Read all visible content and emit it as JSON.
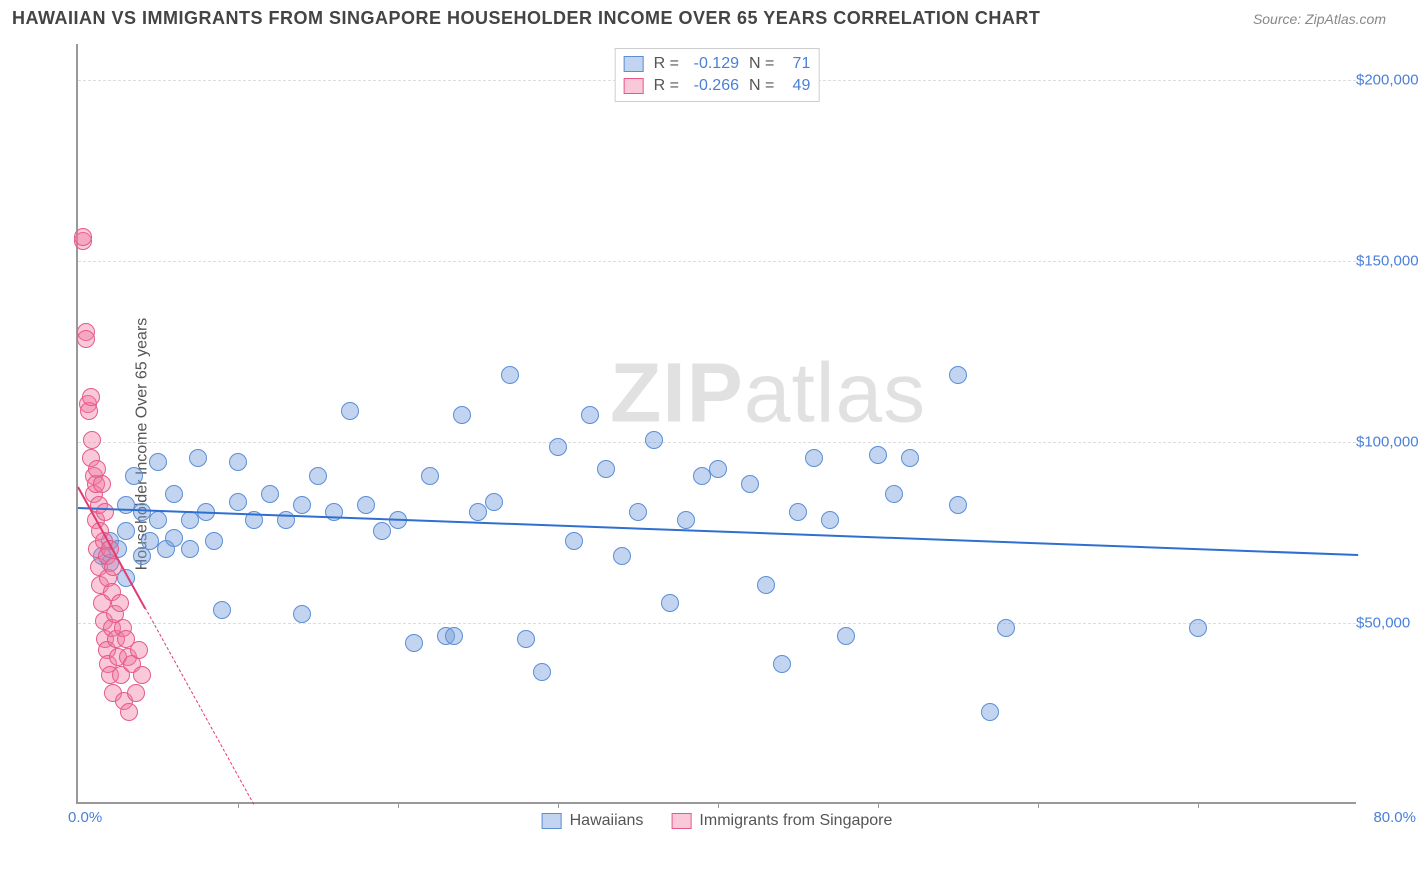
{
  "header": {
    "title": "HAWAIIAN VS IMMIGRANTS FROM SINGAPORE HOUSEHOLDER INCOME OVER 65 YEARS CORRELATION CHART",
    "source": "Source: ZipAtlas.com"
  },
  "chart": {
    "type": "scatter",
    "ylabel": "Householder Income Over 65 years",
    "watermark_1": "ZIP",
    "watermark_2": "atlas",
    "background_color": "#ffffff",
    "grid_color": "#dddddd",
    "axis_color": "#999999",
    "x": {
      "min": 0,
      "max": 80,
      "unit": "%",
      "start_label": "0.0%",
      "end_label": "80.0%",
      "tick_positions": [
        10,
        20,
        30,
        40,
        50,
        60,
        70
      ]
    },
    "y": {
      "min": 0,
      "max": 210000,
      "unit": "$",
      "ticks": [
        50000,
        100000,
        150000,
        200000
      ],
      "tick_labels": [
        "$50,000",
        "$100,000",
        "$150,000",
        "$200,000"
      ]
    },
    "series": [
      {
        "name": "Hawaiians",
        "R": "-0.129",
        "N": "71",
        "marker_radius": 9,
        "fill": "rgba(120,160,220,0.45)",
        "stroke": "#5b8ed6",
        "trend_color": "#2f6fd0",
        "trend": {
          "x1": 0,
          "y1": 82000,
          "x2": 80,
          "y2": 69000,
          "solid_until_x": 80
        },
        "points": [
          [
            1.5,
            68000
          ],
          [
            2,
            66000
          ],
          [
            2,
            72000
          ],
          [
            2.5,
            70000
          ],
          [
            3,
            62000
          ],
          [
            3,
            75000
          ],
          [
            3.5,
            90000
          ],
          [
            4,
            68000
          ],
          [
            4,
            80000
          ],
          [
            4.5,
            72000
          ],
          [
            5,
            78000
          ],
          [
            5,
            94000
          ],
          [
            5.5,
            70000
          ],
          [
            6,
            85000
          ],
          [
            6,
            73000
          ],
          [
            7,
            70000
          ],
          [
            7,
            78000
          ],
          [
            7.5,
            95000
          ],
          [
            8,
            80000
          ],
          [
            8.5,
            72000
          ],
          [
            9,
            53000
          ],
          [
            10,
            83000
          ],
          [
            10,
            94000
          ],
          [
            11,
            78000
          ],
          [
            12,
            85000
          ],
          [
            13,
            78000
          ],
          [
            14,
            82000
          ],
          [
            14,
            52000
          ],
          [
            15,
            90000
          ],
          [
            16,
            80000
          ],
          [
            17,
            108000
          ],
          [
            18,
            82000
          ],
          [
            19,
            75000
          ],
          [
            20,
            78000
          ],
          [
            21,
            44000
          ],
          [
            22,
            90000
          ],
          [
            23,
            46000
          ],
          [
            23.5,
            46000
          ],
          [
            24,
            107000
          ],
          [
            25,
            80000
          ],
          [
            26,
            83000
          ],
          [
            27,
            118000
          ],
          [
            28,
            45000
          ],
          [
            29,
            36000
          ],
          [
            30,
            98000
          ],
          [
            31,
            72000
          ],
          [
            32,
            107000
          ],
          [
            33,
            92000
          ],
          [
            34,
            68000
          ],
          [
            35,
            80000
          ],
          [
            36,
            100000
          ],
          [
            37,
            55000
          ],
          [
            38,
            78000
          ],
          [
            39,
            90000
          ],
          [
            40,
            92000
          ],
          [
            42,
            88000
          ],
          [
            43,
            60000
          ],
          [
            44,
            38000
          ],
          [
            45,
            80000
          ],
          [
            46,
            95000
          ],
          [
            47,
            78000
          ],
          [
            48,
            46000
          ],
          [
            50,
            96000
          ],
          [
            51,
            85000
          ],
          [
            52,
            95000
          ],
          [
            55,
            118000
          ],
          [
            55,
            82000
          ],
          [
            57,
            25000
          ],
          [
            58,
            48000
          ],
          [
            70,
            48000
          ],
          [
            3,
            82000
          ]
        ]
      },
      {
        "name": "Immigrants from Singapore",
        "R": "-0.266",
        "N": "49",
        "marker_radius": 9,
        "fill": "rgba(240,120,160,0.40)",
        "stroke": "#e65a8a",
        "trend_color": "#e23b72",
        "trend": {
          "x1": 0,
          "y1": 88000,
          "x2": 11,
          "y2": 0,
          "solid_until_x": 4.2
        },
        "points": [
          [
            0.3,
            155000
          ],
          [
            0.3,
            156000
          ],
          [
            0.5,
            130000
          ],
          [
            0.5,
            128000
          ],
          [
            0.6,
            110000
          ],
          [
            0.7,
            108000
          ],
          [
            0.8,
            112000
          ],
          [
            0.8,
            95000
          ],
          [
            0.9,
            100000
          ],
          [
            1.0,
            90000
          ],
          [
            1.0,
            85000
          ],
          [
            1.1,
            88000
          ],
          [
            1.1,
            78000
          ],
          [
            1.2,
            92000
          ],
          [
            1.2,
            70000
          ],
          [
            1.3,
            82000
          ],
          [
            1.3,
            65000
          ],
          [
            1.4,
            75000
          ],
          [
            1.4,
            60000
          ],
          [
            1.5,
            88000
          ],
          [
            1.5,
            55000
          ],
          [
            1.6,
            72000
          ],
          [
            1.6,
            50000
          ],
          [
            1.7,
            80000
          ],
          [
            1.7,
            45000
          ],
          [
            1.8,
            68000
          ],
          [
            1.8,
            42000
          ],
          [
            1.9,
            62000
          ],
          [
            1.9,
            38000
          ],
          [
            2.0,
            70000
          ],
          [
            2.0,
            35000
          ],
          [
            2.1,
            58000
          ],
          [
            2.1,
            48000
          ],
          [
            2.2,
            65000
          ],
          [
            2.2,
            30000
          ],
          [
            2.3,
            52000
          ],
          [
            2.4,
            45000
          ],
          [
            2.5,
            40000
          ],
          [
            2.6,
            55000
          ],
          [
            2.7,
            35000
          ],
          [
            2.8,
            48000
          ],
          [
            2.9,
            28000
          ],
          [
            3.0,
            45000
          ],
          [
            3.1,
            40000
          ],
          [
            3.2,
            25000
          ],
          [
            3.4,
            38000
          ],
          [
            3.6,
            30000
          ],
          [
            3.8,
            42000
          ],
          [
            4.0,
            35000
          ]
        ]
      }
    ],
    "legend_top_labels": {
      "R": "R =",
      "N": "N ="
    }
  }
}
